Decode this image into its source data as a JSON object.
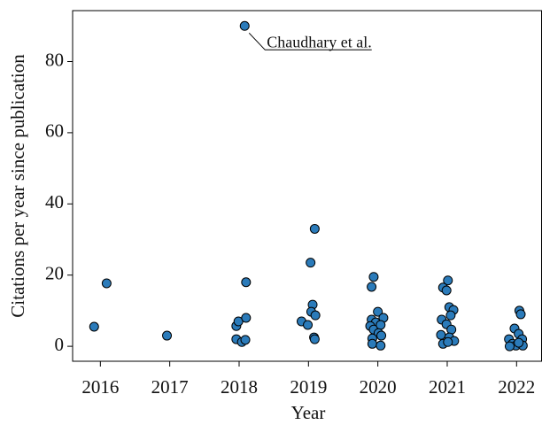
{
  "chart_data": {
    "type": "scatter",
    "xlabel": "Year",
    "ylabel": "Citations per year since publication",
    "annotation": "Chaudhary et al.",
    "xlim": [
      2015.6,
      2022.36
    ],
    "ylim": [
      -4.2,
      94.3
    ],
    "xticks": [
      2016,
      2017,
      2018,
      2019,
      2020,
      2021,
      2022
    ],
    "yticks": [
      0,
      20,
      40,
      60,
      80
    ],
    "series": [
      {
        "color": "#2b7bba",
        "x": [
          2015.91,
          2016.09,
          2016.96,
          2018.08,
          2017.96,
          2017.99,
          2018.1,
          2018.1,
          2017.96,
          2018.04,
          2018.09,
          2019.09,
          2019.03,
          2019.06,
          2019.04,
          2019.1,
          2018.9,
          2018.99,
          2019.08,
          2019.09,
          2019.94,
          2019.91,
          2020.0,
          2020.08,
          2019.91,
          2019.97,
          2019.89,
          2019.94,
          2020.04,
          2020.01,
          2019.92,
          2020.05,
          2019.92,
          2020.04,
          2021.01,
          2020.94,
          2020.99,
          2021.03,
          2021.09,
          2021.05,
          2020.92,
          2020.99,
          2021.06,
          2020.91,
          2021.03,
          2021.1,
          2020.94,
          2021.01,
          2022.04,
          2022.06,
          2021.97,
          2022.03,
          2021.89,
          2022.08,
          2021.94,
          2021.99,
          2022.09,
          2021.9,
          2022.03
        ],
        "values": [
          5.5,
          17.7,
          3.0,
          90,
          5.7,
          7,
          8,
          18,
          2,
          1.2,
          1.8,
          33,
          23.5,
          11.7,
          9.7,
          8.7,
          7,
          6,
          2.5,
          2,
          19.5,
          16.7,
          9.7,
          8,
          7.5,
          6.7,
          5.7,
          4.7,
          6,
          3.7,
          2.2,
          3,
          0.7,
          0.2,
          18.5,
          16.5,
          15.7,
          11,
          10.2,
          8.7,
          7.5,
          6.2,
          4.7,
          3.2,
          2.5,
          1.5,
          0.7,
          1.2,
          10,
          9,
          5,
          3.5,
          2,
          2,
          0.7,
          0.2,
          0.2,
          0,
          1
        ]
      }
    ]
  }
}
